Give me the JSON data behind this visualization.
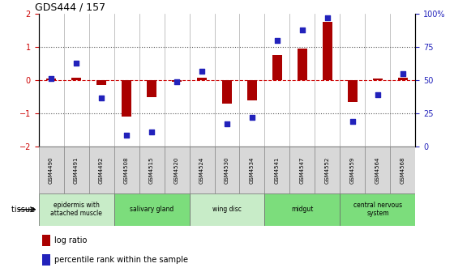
{
  "title": "GDS444 / 157",
  "samples": [
    "GSM4490",
    "GSM4491",
    "GSM4492",
    "GSM4508",
    "GSM4515",
    "GSM4520",
    "GSM4524",
    "GSM4530",
    "GSM4534",
    "GSM4541",
    "GSM4547",
    "GSM4552",
    "GSM4559",
    "GSM4564",
    "GSM4568"
  ],
  "log_ratio": [
    0.05,
    0.08,
    -0.15,
    -1.1,
    -0.5,
    -0.05,
    0.08,
    -0.7,
    -0.6,
    0.75,
    0.95,
    1.75,
    -0.65,
    0.05,
    0.08
  ],
  "percentile": [
    51,
    63,
    37,
    9,
    11,
    49,
    57,
    17,
    22,
    80,
    88,
    97,
    19,
    39,
    55
  ],
  "tissues": [
    {
      "label": "epidermis with\nattached muscle",
      "start": 0,
      "end": 3,
      "color": "#c8ecc8"
    },
    {
      "label": "salivary gland",
      "start": 3,
      "end": 6,
      "color": "#7cdd7c"
    },
    {
      "label": "wing disc",
      "start": 6,
      "end": 9,
      "color": "#c8ecc8"
    },
    {
      "label": "midgut",
      "start": 9,
      "end": 12,
      "color": "#7cdd7c"
    },
    {
      "label": "central nervous\nsystem",
      "start": 12,
      "end": 15,
      "color": "#7cdd7c"
    }
  ],
  "bar_color": "#aa0000",
  "dot_color": "#2222bb",
  "dashed_line_color": "#cc0000",
  "dotted_line_color": "#555555",
  "bg_color": "#ffffff",
  "sample_row_color": "#d8d8d8",
  "ylim_left": [
    -2,
    2
  ],
  "yticks_left": [
    -2,
    -1,
    0,
    1,
    2
  ],
  "yticks_right": [
    0,
    25,
    50,
    75,
    100
  ],
  "yticklabels_right": [
    "0",
    "25",
    "50",
    "75",
    "100%"
  ],
  "figsize": [
    5.6,
    3.36
  ],
  "dpi": 100
}
